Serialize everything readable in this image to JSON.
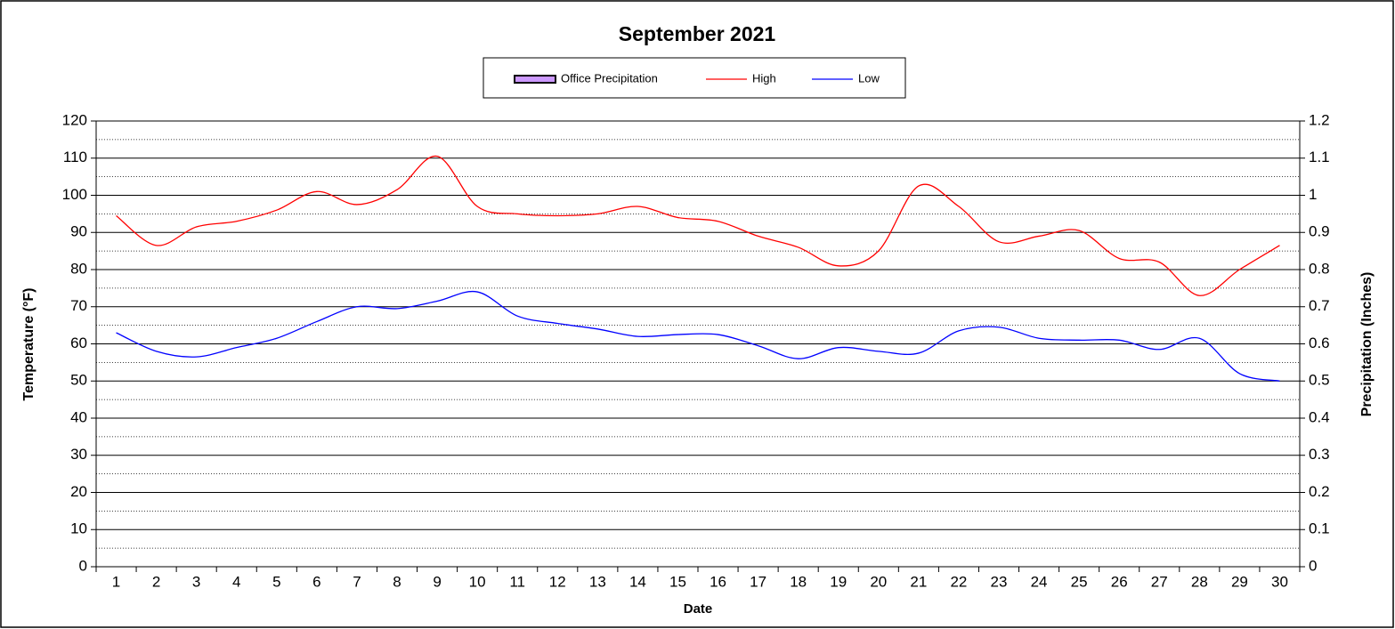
{
  "chart_data": {
    "type": "line",
    "title": "September 2021",
    "x_label": "Date",
    "y_label": "Temperature (°F)",
    "y2_label": "Precipitation (Inches)",
    "categories": [
      "1",
      "2",
      "3",
      "4",
      "5",
      "6",
      "7",
      "8",
      "9",
      "10",
      "11",
      "12",
      "13",
      "14",
      "15",
      "16",
      "17",
      "18",
      "19",
      "20",
      "21",
      "22",
      "23",
      "24",
      "25",
      "26",
      "27",
      "28",
      "29",
      "30"
    ],
    "ylim": [
      0,
      120
    ],
    "yticks": [
      0,
      10,
      20,
      30,
      40,
      50,
      60,
      70,
      80,
      90,
      100,
      110,
      120
    ],
    "minor_yticks": [
      5,
      15,
      25,
      35,
      45,
      55,
      65,
      75,
      85,
      95,
      105,
      115
    ],
    "y2lim": [
      0,
      1.2
    ],
    "y2ticks": [
      0,
      0.1,
      0.2,
      0.3,
      0.4,
      0.5,
      0.6,
      0.7,
      0.8,
      0.9,
      1,
      1.1,
      1.2
    ],
    "grid": true,
    "legend": "top",
    "series": [
      {
        "name": "Office Precipitation",
        "type": "bar",
        "axis": "y2",
        "color": "#cc99ff",
        "values": [
          0,
          0,
          0,
          0,
          0,
          0,
          0,
          0,
          0,
          0,
          0,
          0,
          0,
          0,
          0,
          0,
          0,
          0,
          0,
          0,
          0,
          0,
          0,
          0,
          0,
          0,
          0,
          0,
          0,
          0
        ]
      },
      {
        "name": "High",
        "color": "#ff0000",
        "values": [
          94.5,
          86.5,
          91.5,
          93,
          96,
          101,
          97.5,
          101.5,
          110.5,
          97,
          95,
          94.5,
          95,
          97,
          94,
          93,
          89,
          86,
          81,
          85,
          102.5,
          97,
          87.5,
          89,
          90.5,
          83,
          82,
          73,
          80,
          86.5
        ]
      },
      {
        "name": "Low",
        "color": "#0000ff",
        "values": [
          63,
          58,
          56.5,
          59,
          61.5,
          66,
          70,
          69.5,
          71.5,
          74,
          67.5,
          65.5,
          64,
          62,
          62.5,
          62.5,
          59.5,
          56,
          59,
          58,
          57.5,
          63.5,
          64.5,
          61.5,
          61,
          61,
          58.5,
          61.5,
          52,
          50
        ]
      }
    ]
  }
}
